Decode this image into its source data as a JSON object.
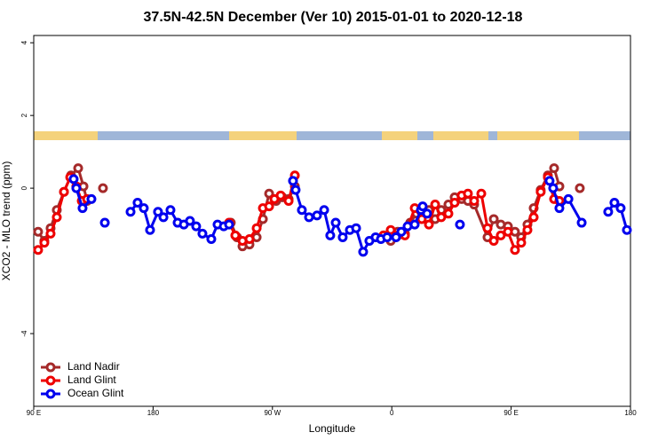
{
  "chart_data": {
    "type": "line",
    "title": "37.5N-42.5N December (Ver 10)   2015-01-01 to 2020-12-18",
    "x_label": "Longitude",
    "y_label": "XCO2 - MLO trend (ppm)",
    "xlim": [
      90,
      540
    ],
    "ylim": [
      -6,
      4.2
    ],
    "xticks": [
      {
        "value": 90,
        "label": "90 E"
      },
      180,
      {
        "value": 270,
        "label": "90 W"
      },
      {
        "value": 360,
        "label": "0"
      },
      {
        "value": 450,
        "label": "90 E"
      },
      {
        "value": 540,
        "label": "180"
      }
    ],
    "yticks": [
      4,
      2,
      0,
      -4
    ],
    "legend": "bottom-left",
    "series": [
      {
        "name": "Land Nadir",
        "color": "#a52a2a",
        "x": [
          93.3,
          98.0,
          102.7,
          107.4,
          112.8,
          118.1,
          123.5,
          127.5,
          130.2,
          136.0,
          142.2,
          190.0,
          238.6,
          243.3,
          247.4,
          252.7,
          258.1,
          262.8,
          267.5,
          272.8,
          277.5,
          282.2,
          286.9,
          320.0,
          353.8,
          359.2,
          364.5,
          369.9,
          373.9,
          378.6,
          383.3,
          388.0,
          392.7,
          397.3,
          402.7,
          407.4,
          412.7,
          417.4,
          422.1,
          432.2,
          436.9,
          442.2,
          447.6,
          452.9,
          457.6,
          462.3,
          467.0,
          472.3,
          477.7,
          482.4,
          486.4,
          494.0,
          501.8
        ],
        "values": [
          -1.2,
          -1.45,
          -1.1,
          -0.6,
          -0.1,
          0.35,
          0.55,
          0.05,
          -0.35,
          null,
          0.0,
          null,
          -0.95,
          -1.35,
          -1.6,
          -1.55,
          -1.35,
          -0.85,
          -0.15,
          -0.35,
          -0.25,
          -0.3,
          0.05,
          null,
          -1.3,
          -1.45,
          -1.2,
          -1.25,
          -0.95,
          -0.7,
          -0.55,
          -0.6,
          -0.85,
          -0.6,
          -0.45,
          -0.25,
          -0.3,
          -0.35,
          -0.45,
          -1.35,
          -0.85,
          -1.0,
          -1.05,
          -1.2,
          -1.35,
          -1.0,
          -0.55,
          -0.05,
          0.35,
          0.55,
          0.05,
          null,
          0.0
        ]
      },
      {
        "name": "Land Glint",
        "color": "#ee0000",
        "x": [
          93.3,
          98.0,
          102.7,
          107.4,
          112.8,
          117.5,
          122.1,
          126.2,
          130.2,
          184.0,
          237.3,
          242.0,
          247.4,
          252.7,
          258.1,
          262.8,
          267.5,
          271.5,
          276.2,
          282.2,
          286.9,
          320.0,
          353.8,
          359.2,
          364.5,
          369.9,
          377.3,
          382.6,
          388.0,
          392.7,
          397.3,
          402.7,
          407.4,
          412.7,
          417.4,
          422.1,
          427.5,
          432.2,
          436.9,
          442.2,
          447.6,
          452.9,
          457.6,
          462.3,
          467.0,
          472.3,
          477.7,
          482.4,
          486.4
        ],
        "values": [
          -1.7,
          -1.5,
          -1.25,
          -0.8,
          -0.1,
          0.3,
          0.05,
          -0.35,
          -0.3,
          null,
          -0.95,
          -1.3,
          -1.45,
          -1.4,
          -1.1,
          -0.55,
          -0.5,
          -0.3,
          -0.2,
          -0.35,
          0.35,
          null,
          -1.3,
          -1.15,
          -1.3,
          -1.3,
          -0.55,
          -0.85,
          -1.0,
          -0.45,
          -0.8,
          -0.7,
          -0.4,
          -0.2,
          -0.15,
          -0.35,
          -0.15,
          -1.1,
          -1.45,
          -1.3,
          -1.2,
          -1.7,
          -1.5,
          -1.15,
          -0.8,
          -0.1,
          0.3,
          -0.3,
          -0.35
        ]
      },
      {
        "name": "Ocean Glint",
        "color": "#0000ee",
        "x": [
          120.1,
          122.1,
          126.8,
          133.5,
          138.0,
          143.6,
          153.0,
          163.0,
          168.3,
          173.0,
          177.7,
          183.7,
          187.8,
          193.1,
          198.5,
          203.2,
          207.8,
          212.5,
          217.2,
          223.9,
          228.6,
          233.3,
          237.3,
          260.0,
          285.5,
          287.5,
          292.2,
          297.6,
          303.6,
          309.0,
          313.6,
          317.7,
          323.0,
          328.4,
          333.1,
          338.4,
          343.1,
          347.8,
          351.8,
          356.5,
          363.2,
          367.2,
          371.9,
          377.3,
          382.0,
          383.3,
          386.6,
          399.0,
          411.4,
          445.0,
          479.0,
          481.7,
          486.4,
          493.2,
          503.2,
          513.0,
          523.2,
          527.9,
          532.6,
          537.3
        ],
        "values": [
          0.25,
          0.0,
          -0.55,
          -0.3,
          null,
          -0.95,
          null,
          -0.65,
          -0.4,
          -0.55,
          -1.15,
          -0.65,
          -0.8,
          -0.6,
          -0.95,
          -1.0,
          -0.9,
          -1.05,
          -1.25,
          -1.4,
          -1.0,
          -1.05,
          -1.0,
          null,
          0.2,
          -0.05,
          -0.6,
          -0.8,
          -0.75,
          -0.6,
          -1.3,
          -0.95,
          -1.35,
          -1.15,
          -1.1,
          -1.75,
          -1.45,
          -1.35,
          -1.4,
          -1.35,
          -1.35,
          -1.2,
          -1.05,
          -1.0,
          -0.6,
          -0.5,
          -0.7,
          null,
          -1.0,
          null,
          0.2,
          0.0,
          -0.55,
          -0.3,
          -0.95,
          null,
          -0.65,
          -0.4,
          -0.55,
          -1.15
        ]
      }
    ]
  }
}
